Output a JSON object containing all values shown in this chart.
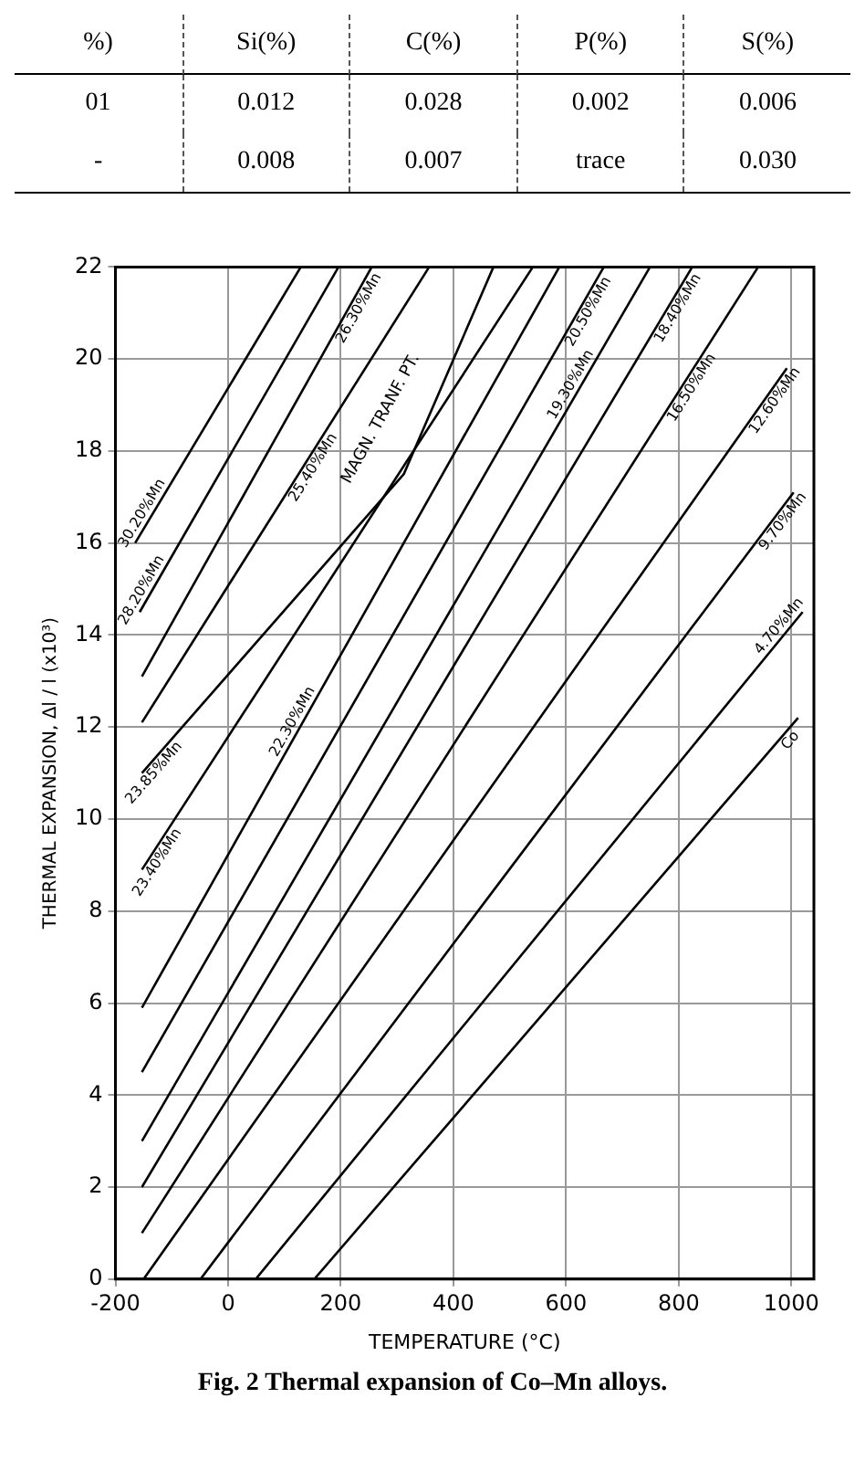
{
  "chart_data": {
    "type": "line",
    "title": "Fig. 2  Thermal expansion of Co–Mn alloys.",
    "xlabel": "TEMPERATURE (°C)",
    "ylabel": "THERMAL EXPANSION, Δl / l (x10³)",
    "annotations": [
      "%)",
      "Si(%)",
      "C(%)",
      "P(%)",
      "S(%)",
      "01",
      "0.012",
      "0.028",
      "0.002",
      "0.006",
      "-",
      "0.008",
      "0.007",
      "trace",
      "0.030",
      "MAGN. TRANF. PT."
    ],
    "xlim": [
      -200,
      1040
    ],
    "xticks": [
      -200,
      0,
      200,
      400,
      600,
      800,
      1000
    ],
    "ylim": [
      0,
      22
    ],
    "yticks": [
      0,
      2,
      4,
      6,
      8,
      10,
      12,
      14,
      16,
      18,
      20,
      22
    ],
    "grid": true,
    "legend": false,
    "marker": "none",
    "line_style": "solid",
    "series": [
      {
        "name": "30.20%Mn",
        "color": "#000000",
        "x": [
          -165,
          129
        ],
        "values": [
          16,
          22
        ]
      },
      {
        "name": "28.20%Mn",
        "color": "#000000",
        "x": [
          -157,
          196
        ],
        "values": [
          14.5,
          22
        ]
      },
      {
        "name": "26.30%Mn",
        "color": "#000000",
        "x": [
          -153,
          255
        ],
        "values": [
          13.1,
          22
        ]
      },
      {
        "name": "25.40%Mn",
        "color": "#000000",
        "x": [
          -153,
          357
        ],
        "values": [
          12.1,
          22
        ]
      },
      {
        "name": "23.85%Mn",
        "color": "#000000",
        "x": [
          -153,
          312,
          471
        ],
        "values": [
          11,
          17.5,
          22
        ]
      },
      {
        "name": "23.40%Mn",
        "color": "#000000",
        "x": [
          -153,
          541
        ],
        "values": [
          8.9,
          22
        ]
      },
      {
        "name": "22.30%Mn",
        "color": "#000000",
        "x": [
          -153,
          588
        ],
        "values": [
          5.9,
          22
        ]
      },
      {
        "name": "20.50%Mn",
        "color": "#000000",
        "x": [
          -153,
          667
        ],
        "values": [
          4.5,
          22
        ]
      },
      {
        "name": "19.30%Mn",
        "color": "#000000",
        "x": [
          -153,
          749
        ],
        "values": [
          3,
          22
        ]
      },
      {
        "name": "18.40%Mn",
        "color": "#000000",
        "x": [
          -153,
          824
        ],
        "values": [
          2,
          22
        ]
      },
      {
        "name": "16.50%Mn",
        "color": "#000000",
        "x": [
          -153,
          941
        ],
        "values": [
          1,
          22
        ]
      },
      {
        "name": "12.60%Mn",
        "color": "#000000",
        "x": [
          -150,
          992
        ],
        "values": [
          0,
          19.8
        ]
      },
      {
        "name": "9.70%Mn",
        "color": "#000000",
        "x": [
          -49,
          1004
        ],
        "values": [
          0,
          17.1
        ]
      },
      {
        "name": "4.70%Mn",
        "color": "#000000",
        "x": [
          49,
          1020
        ],
        "values": [
          0,
          14.5
        ]
      },
      {
        "name": "Co",
        "color": "#000000",
        "x": [
          153,
          1012
        ],
        "values": [
          0,
          12.2
        ]
      }
    ]
  }
}
